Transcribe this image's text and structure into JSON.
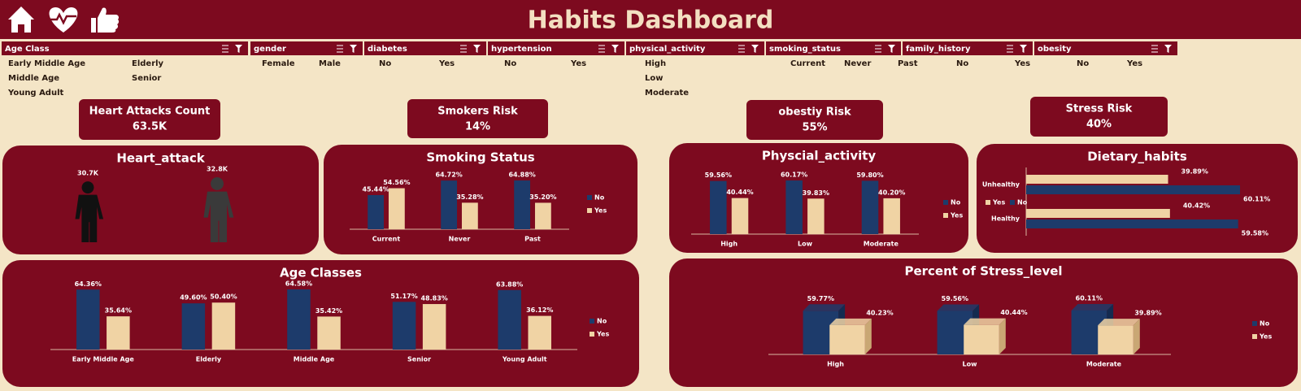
{
  "header": {
    "title": "Habits Dashboard"
  },
  "slicers": [
    {
      "title": "Age Class",
      "items": [
        "Early Middle Age",
        "Elderly",
        "Middle Age",
        "Senior",
        "Young Adult"
      ]
    },
    {
      "title": "gender",
      "items": [
        "Female",
        "Male"
      ]
    },
    {
      "title": "diabetes",
      "items": [
        "No",
        "Yes"
      ]
    },
    {
      "title": "hypertension",
      "items": [
        "No",
        "Yes"
      ]
    },
    {
      "title": "physical_activity",
      "items": [
        "High",
        "Low",
        "Moderate"
      ]
    },
    {
      "title": "smoking_status",
      "items": [
        "Current",
        "Never",
        "Past"
      ]
    },
    {
      "title": "family_history",
      "items": [
        "No",
        "Yes"
      ]
    },
    {
      "title": "obesity",
      "items": [
        "No",
        "Yes"
      ]
    }
  ],
  "kpis": [
    {
      "title": "Heart Attacks Count",
      "value": "63.5K"
    },
    {
      "title": "Smokers Risk",
      "value": "14%"
    },
    {
      "title": "obestiy Risk",
      "value": "55%"
    },
    {
      "title": "Stress Risk",
      "value": "40%"
    }
  ],
  "chart_data": [
    {
      "type": "pictograph",
      "title": "Heart_attack",
      "values": [
        30700,
        32800
      ],
      "value_labels": [
        "30.7K",
        "32.8K"
      ],
      "colors": [
        "#111111",
        "#3a3a3a"
      ]
    },
    {
      "type": "bar",
      "title": "Smoking Status",
      "categories": [
        "Current",
        "Never",
        "Past"
      ],
      "series": [
        {
          "name": "No",
          "color": "#1d3b6b",
          "values": [
            45.44,
            64.72,
            64.88
          ],
          "value_labels": [
            "45.44%",
            "64.72%",
            "64.88%"
          ]
        },
        {
          "name": "Yes",
          "color": "#f0d3a4",
          "values": [
            54.56,
            35.28,
            35.2
          ],
          "value_labels": [
            "54.56%",
            "35.28%",
            "35.20%"
          ]
        }
      ]
    },
    {
      "type": "bar",
      "title": "Physcial_activity",
      "categories": [
        "High",
        "Low",
        "Moderate"
      ],
      "series": [
        {
          "name": "No",
          "color": "#1d3b6b",
          "values": [
            59.56,
            60.17,
            59.8
          ],
          "value_labels": [
            "59.56%",
            "60.17%",
            "59.80%"
          ]
        },
        {
          "name": "Yes",
          "color": "#f0d3a4",
          "values": [
            40.44,
            39.83,
            40.2
          ],
          "value_labels": [
            "40.44%",
            "39.83%",
            "40.20%"
          ]
        }
      ]
    },
    {
      "type": "barh",
      "title": "Dietary_habits",
      "categories": [
        "Unhealthy",
        "Healthy"
      ],
      "series": [
        {
          "name": "Yes",
          "color": "#f0d3a4",
          "values": [
            39.89,
            40.42
          ],
          "value_labels": [
            "39.89%",
            "40.42%"
          ]
        },
        {
          "name": "No",
          "color": "#1d3b6b",
          "values": [
            60.11,
            59.58
          ],
          "value_labels": [
            "60.11%",
            "59.58%"
          ]
        }
      ]
    },
    {
      "type": "bar",
      "title": "Age Classes",
      "categories": [
        "Early Middle Age",
        "Elderly",
        "Middle Age",
        "Senior",
        "Young Adult"
      ],
      "series": [
        {
          "name": "No",
          "color": "#1d3b6b",
          "values": [
            64.36,
            49.6,
            64.58,
            51.17,
            63.88
          ],
          "value_labels": [
            "64.36%",
            "49.60%",
            "64.58%",
            "51.17%",
            "63.88%"
          ]
        },
        {
          "name": "Yes",
          "color": "#f0d3a4",
          "values": [
            35.64,
            50.4,
            35.42,
            48.83,
            36.12
          ],
          "value_labels": [
            "35.64%",
            "50.40%",
            "35.42%",
            "48.83%",
            "36.12%"
          ]
        }
      ]
    },
    {
      "type": "bar3d",
      "title": "Percent of Stress_level",
      "categories": [
        "High",
        "Low",
        "Moderate"
      ],
      "series": [
        {
          "name": "No",
          "color": "#1d3b6b",
          "values": [
            59.77,
            59.56,
            60.11
          ],
          "value_labels": [
            "59.77%",
            "59.56%",
            "60.11%"
          ]
        },
        {
          "name": "Yes",
          "color": "#f0d3a4",
          "values": [
            40.23,
            40.44,
            39.89
          ],
          "value_labels": [
            "40.23%",
            "40.44%",
            "39.89%"
          ]
        }
      ]
    }
  ]
}
